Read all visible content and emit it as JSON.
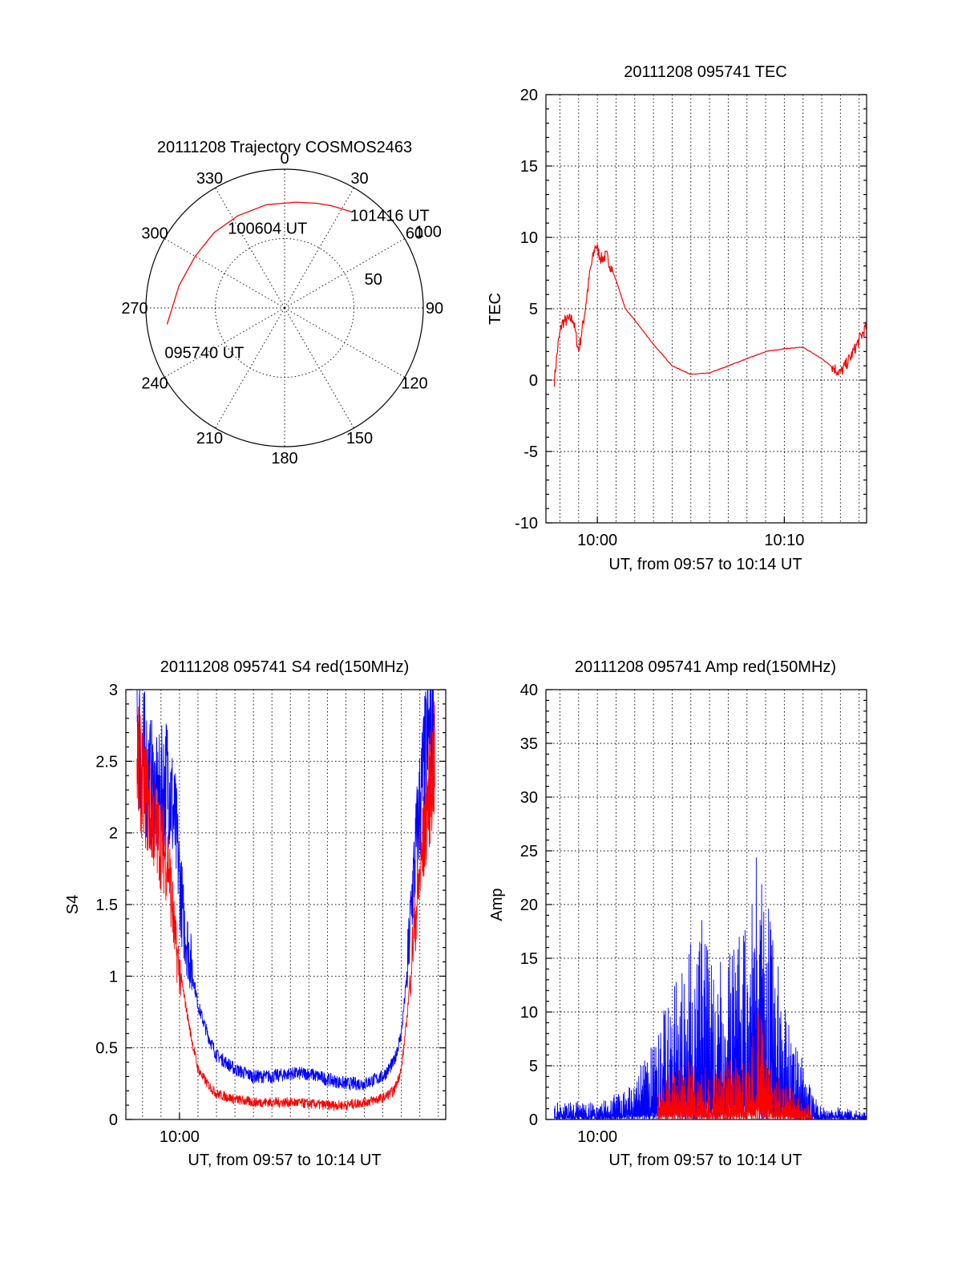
{
  "colors": {
    "red": "#ff0000",
    "blue": "#0000ff",
    "axis": "#000000"
  },
  "chart_data": [
    {
      "type": "polar",
      "title": "20111208 Trajectory COSMOS2463",
      "azimuth_labels": [
        "0",
        "30",
        "60",
        "90",
        "120",
        "150",
        "180",
        "210",
        "240",
        "270",
        "300",
        "330"
      ],
      "ring_labels": [
        "50",
        "100"
      ],
      "series": [
        {
          "color": "#ff0000",
          "points": [
            {
              "azimuth": 262,
              "ring": 77,
              "label": "095740 UT"
            },
            {
              "azimuth": 282,
              "ring": 70
            },
            {
              "azimuth": 300,
              "ring": 67
            },
            {
              "azimuth": 317,
              "ring": 67
            },
            {
              "azimuth": 333,
              "ring": 67
            },
            {
              "azimuth": 350,
              "ring": 68,
              "label": "100604 UT"
            },
            {
              "azimuth": 6,
              "ring": 69
            },
            {
              "azimuth": 17,
              "ring": 71
            },
            {
              "azimuth": 25,
              "ring": 73
            },
            {
              "azimuth": 35,
              "ring": 76,
              "label": "101416 UT"
            }
          ]
        }
      ]
    },
    {
      "type": "line",
      "title": "20111208 095741 TEC",
      "xlabel": "UT, from 09:57 to 10:14 UT",
      "ylabel": "TEC",
      "xlim": [
        -2.75,
        14.4
      ],
      "ylim": [
        -10,
        20
      ],
      "yticks": [
        "-10",
        "-5",
        "0",
        "5",
        "10",
        "15",
        "20"
      ],
      "xticks": [
        "10:00",
        "10:10"
      ],
      "grid": true,
      "series": [
        {
          "color": "#ff0000",
          "noise": 0.45,
          "x": [
            -2.3,
            -2.1,
            -1.9,
            -1.6,
            -1.3,
            -1.0,
            -0.7,
            -0.4,
            -0.1,
            0.2,
            0.5,
            1.0,
            1.5,
            2.0,
            3.0,
            4.0,
            5.0,
            6.0,
            7.0,
            8.0,
            9.0,
            10.0,
            11.0,
            12.0,
            13.0,
            13.5,
            14.0,
            14.4
          ],
          "y": [
            0,
            2.5,
            4.0,
            4.2,
            4.3,
            2.0,
            4.5,
            7.5,
            9.5,
            8.5,
            8.7,
            7.0,
            5.0,
            4.2,
            2.5,
            1.0,
            0.4,
            0.5,
            1.0,
            1.5,
            2.0,
            2.2,
            2.3,
            1.5,
            0.5,
            1.5,
            2.8,
            3.8
          ]
        }
      ]
    },
    {
      "type": "line",
      "title": "20111208 095741 S4 red(150MHz)",
      "xlabel": "UT, from 09:57 to 10:14 UT",
      "ylabel": "S4",
      "xlim": [
        -2.9,
        14.4
      ],
      "ylim": [
        0,
        3
      ],
      "yticks": [
        "0",
        "0.5",
        "1",
        "1.5",
        "2",
        "2.5",
        "3"
      ],
      "xticks": [
        "10:00"
      ],
      "grid": true,
      "series": [
        {
          "color": "#0000ff",
          "noise": 0.12,
          "x": [
            -2.3,
            -1.7,
            -1.2,
            -0.6,
            -0.2,
            0.2,
            0.6,
            1.0,
            1.5,
            2.0,
            3.0,
            4.0,
            5.0,
            6.0,
            7.0,
            8.0,
            9.0,
            10.0,
            11.0,
            11.6,
            12.0,
            12.3,
            12.6,
            13.0,
            13.4,
            13.8
          ],
          "y": [
            2.7,
            2.4,
            2.2,
            2.4,
            2.0,
            1.4,
            1.1,
            0.8,
            0.6,
            0.45,
            0.35,
            0.3,
            0.3,
            0.32,
            0.32,
            0.28,
            0.25,
            0.25,
            0.3,
            0.4,
            0.6,
            1.0,
            1.6,
            2.2,
            2.6,
            2.8
          ]
        },
        {
          "color": "#ff0000",
          "noise": 0.09,
          "x": [
            -2.3,
            -1.7,
            -1.2,
            -0.6,
            -0.2,
            0.2,
            0.6,
            1.0,
            1.5,
            2.0,
            3.0,
            4.0,
            5.0,
            6.0,
            7.0,
            8.0,
            9.0,
            10.0,
            11.0,
            11.6,
            12.0,
            12.3,
            12.6,
            13.0,
            13.4,
            13.8
          ],
          "y": [
            2.5,
            2.2,
            2.0,
            1.8,
            1.2,
            0.9,
            0.6,
            0.35,
            0.25,
            0.18,
            0.14,
            0.12,
            0.12,
            0.12,
            0.11,
            0.1,
            0.1,
            0.12,
            0.15,
            0.2,
            0.35,
            0.7,
            1.2,
            1.7,
            2.2,
            2.5
          ]
        }
      ]
    },
    {
      "type": "line",
      "title": "20111208 095741 Amp red(150MHz)",
      "xlabel": "UT, from 09:57 to 10:14 UT",
      "ylabel": "Amp",
      "xlim": [
        -2.75,
        14.4
      ],
      "ylim": [
        0,
        40
      ],
      "yticks": [
        "0",
        "5",
        "10",
        "15",
        "20",
        "25",
        "30",
        "35",
        "40"
      ],
      "xticks": [
        "10:00"
      ],
      "grid": true,
      "series": [
        {
          "color": "#0000ff",
          "noise": 0.9,
          "x": [
            -2.3,
            0.0,
            1.0,
            2.0,
            3.0,
            4.0,
            5.0,
            5.6,
            6.0,
            7.0,
            8.0,
            8.6,
            9.0,
            9.6,
            10.0,
            11.0,
            11.5,
            12.0,
            13.0,
            14.4
          ],
          "y": [
            0.8,
            1.0,
            1.2,
            2.0,
            4.0,
            7.0,
            9.0,
            10.0,
            8.0,
            8.5,
            11.0,
            14.0,
            12.0,
            8.0,
            6.0,
            3.0,
            1.5,
            0.7,
            0.5,
            0.5
          ]
        },
        {
          "color": "#ff0000",
          "noise": 0.7,
          "x": [
            3.2,
            4.0,
            5.0,
            6.0,
            7.0,
            8.0,
            8.6,
            9.0,
            9.6,
            10.0,
            11.0,
            11.5
          ],
          "y": [
            1.5,
            2.5,
            3.0,
            2.5,
            3.0,
            3.5,
            6.0,
            4.0,
            2.5,
            2.0,
            1.0,
            0.5
          ]
        }
      ]
    }
  ]
}
